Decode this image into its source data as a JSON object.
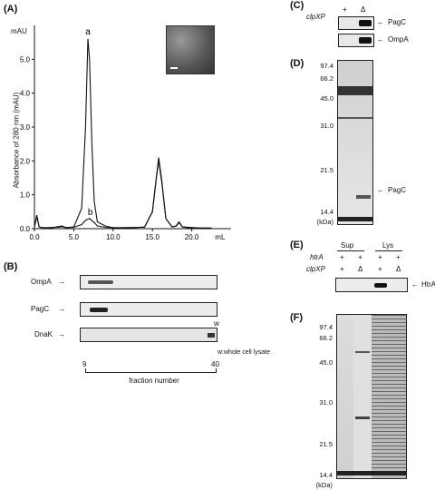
{
  "panels": {
    "A": {
      "label": "(A)",
      "unit": "mAU",
      "ylabel": "Absorbance of 280 nm (mAU)",
      "xunit": "mL",
      "yticks": [
        "0.0",
        "1.0",
        "2.0",
        "3.0",
        "4.0",
        "5.0"
      ],
      "xticks": [
        "0.0",
        "5.0",
        "10.0",
        "15.0",
        "20.0"
      ],
      "peak_a": "a",
      "peak_b": "b"
    },
    "B": {
      "label": "(B)",
      "rows": [
        "OmpA",
        "PagC",
        "DnaK"
      ],
      "w_mark": "w",
      "w_note": "w:whole cell lysate",
      "frac_start": "9",
      "frac_end": "40",
      "axis_label": "fraction number"
    },
    "C": {
      "label": "(C)",
      "genotype": "clpXP",
      "lanes": [
        "+",
        "Δ"
      ],
      "bands": [
        "PagC",
        "OmpA"
      ]
    },
    "D": {
      "label": "(D)",
      "markers": [
        "97.4",
        "66.2",
        "45.0",
        "31.0",
        "21.5",
        "14.4"
      ],
      "unit": "(kDa)",
      "band": "PagC"
    },
    "E": {
      "label": "(E)",
      "groups": [
        "Sup",
        "Lys"
      ],
      "htrA": "htrA",
      "clpXP": "clpXP",
      "htrA_vals": [
        "+",
        "+",
        "+",
        "+"
      ],
      "clpXP_vals": [
        "+",
        "Δ",
        "+",
        "Δ"
      ],
      "band": "HtrA"
    },
    "F": {
      "label": "(F)",
      "markers": [
        "97.4",
        "66.2",
        "45.0",
        "31.0",
        "21.5",
        "14.4"
      ],
      "unit": "(kDa)"
    }
  },
  "chart_data": {
    "type": "line",
    "xlabel": "mL",
    "ylabel": "Absorbance of 280 nm (mAU)",
    "xlim": [
      0,
      25
    ],
    "ylim": [
      0,
      6
    ],
    "series": [
      {
        "name": "a",
        "x": [
          0,
          0.3,
          0.6,
          1,
          2,
          3,
          3.5,
          4,
          5,
          6,
          6.5,
          6.8,
          7,
          7.3,
          7.6,
          8,
          9,
          10,
          12,
          14,
          15,
          15.5,
          15.8,
          16.2,
          16.7,
          17.5,
          18,
          18.4,
          18.8,
          19.5,
          21,
          22.5
        ],
        "y": [
          0.05,
          0.4,
          0.05,
          0.03,
          0.02,
          0.06,
          0.08,
          0.03,
          0.05,
          0.6,
          3.0,
          5.6,
          5.0,
          2.5,
          0.8,
          0.2,
          0.08,
          0.03,
          0.02,
          0.05,
          0.5,
          1.5,
          2.1,
          1.4,
          0.3,
          0.05,
          0.08,
          0.2,
          0.05,
          0.03,
          0.02,
          0.02
        ]
      },
      {
        "name": "b",
        "x": [
          0,
          0.3,
          0.6,
          1,
          3,
          3.5,
          4,
          5,
          6,
          6.5,
          7,
          7.6,
          8,
          9,
          10,
          14,
          15,
          15.5,
          15.8,
          16.2,
          16.7,
          17.5,
          18,
          18.4,
          18.8,
          21,
          22.5
        ],
        "y": [
          0.05,
          0.35,
          0.05,
          0.03,
          0.04,
          0.06,
          0.03,
          0.04,
          0.12,
          0.25,
          0.3,
          0.18,
          0.08,
          0.04,
          0.03,
          0.04,
          0.5,
          1.5,
          2.0,
          1.35,
          0.3,
          0.05,
          0.07,
          0.18,
          0.05,
          0.02,
          0.02
        ]
      }
    ]
  },
  "colors": {
    "ink": "#111111",
    "gel_bg": "#e2e2e2",
    "band": "#2a2a2a"
  }
}
